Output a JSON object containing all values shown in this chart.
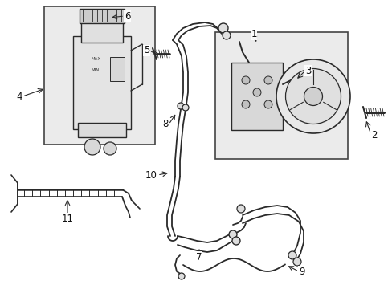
{
  "bg_color": "#ffffff",
  "line_color": "#2a2a2a",
  "box_fill": "#ebebeb",
  "box_border": "#444444",
  "label_fontsize": 8.5,
  "fig_width": 4.89,
  "fig_height": 3.6,
  "dpi": 100
}
